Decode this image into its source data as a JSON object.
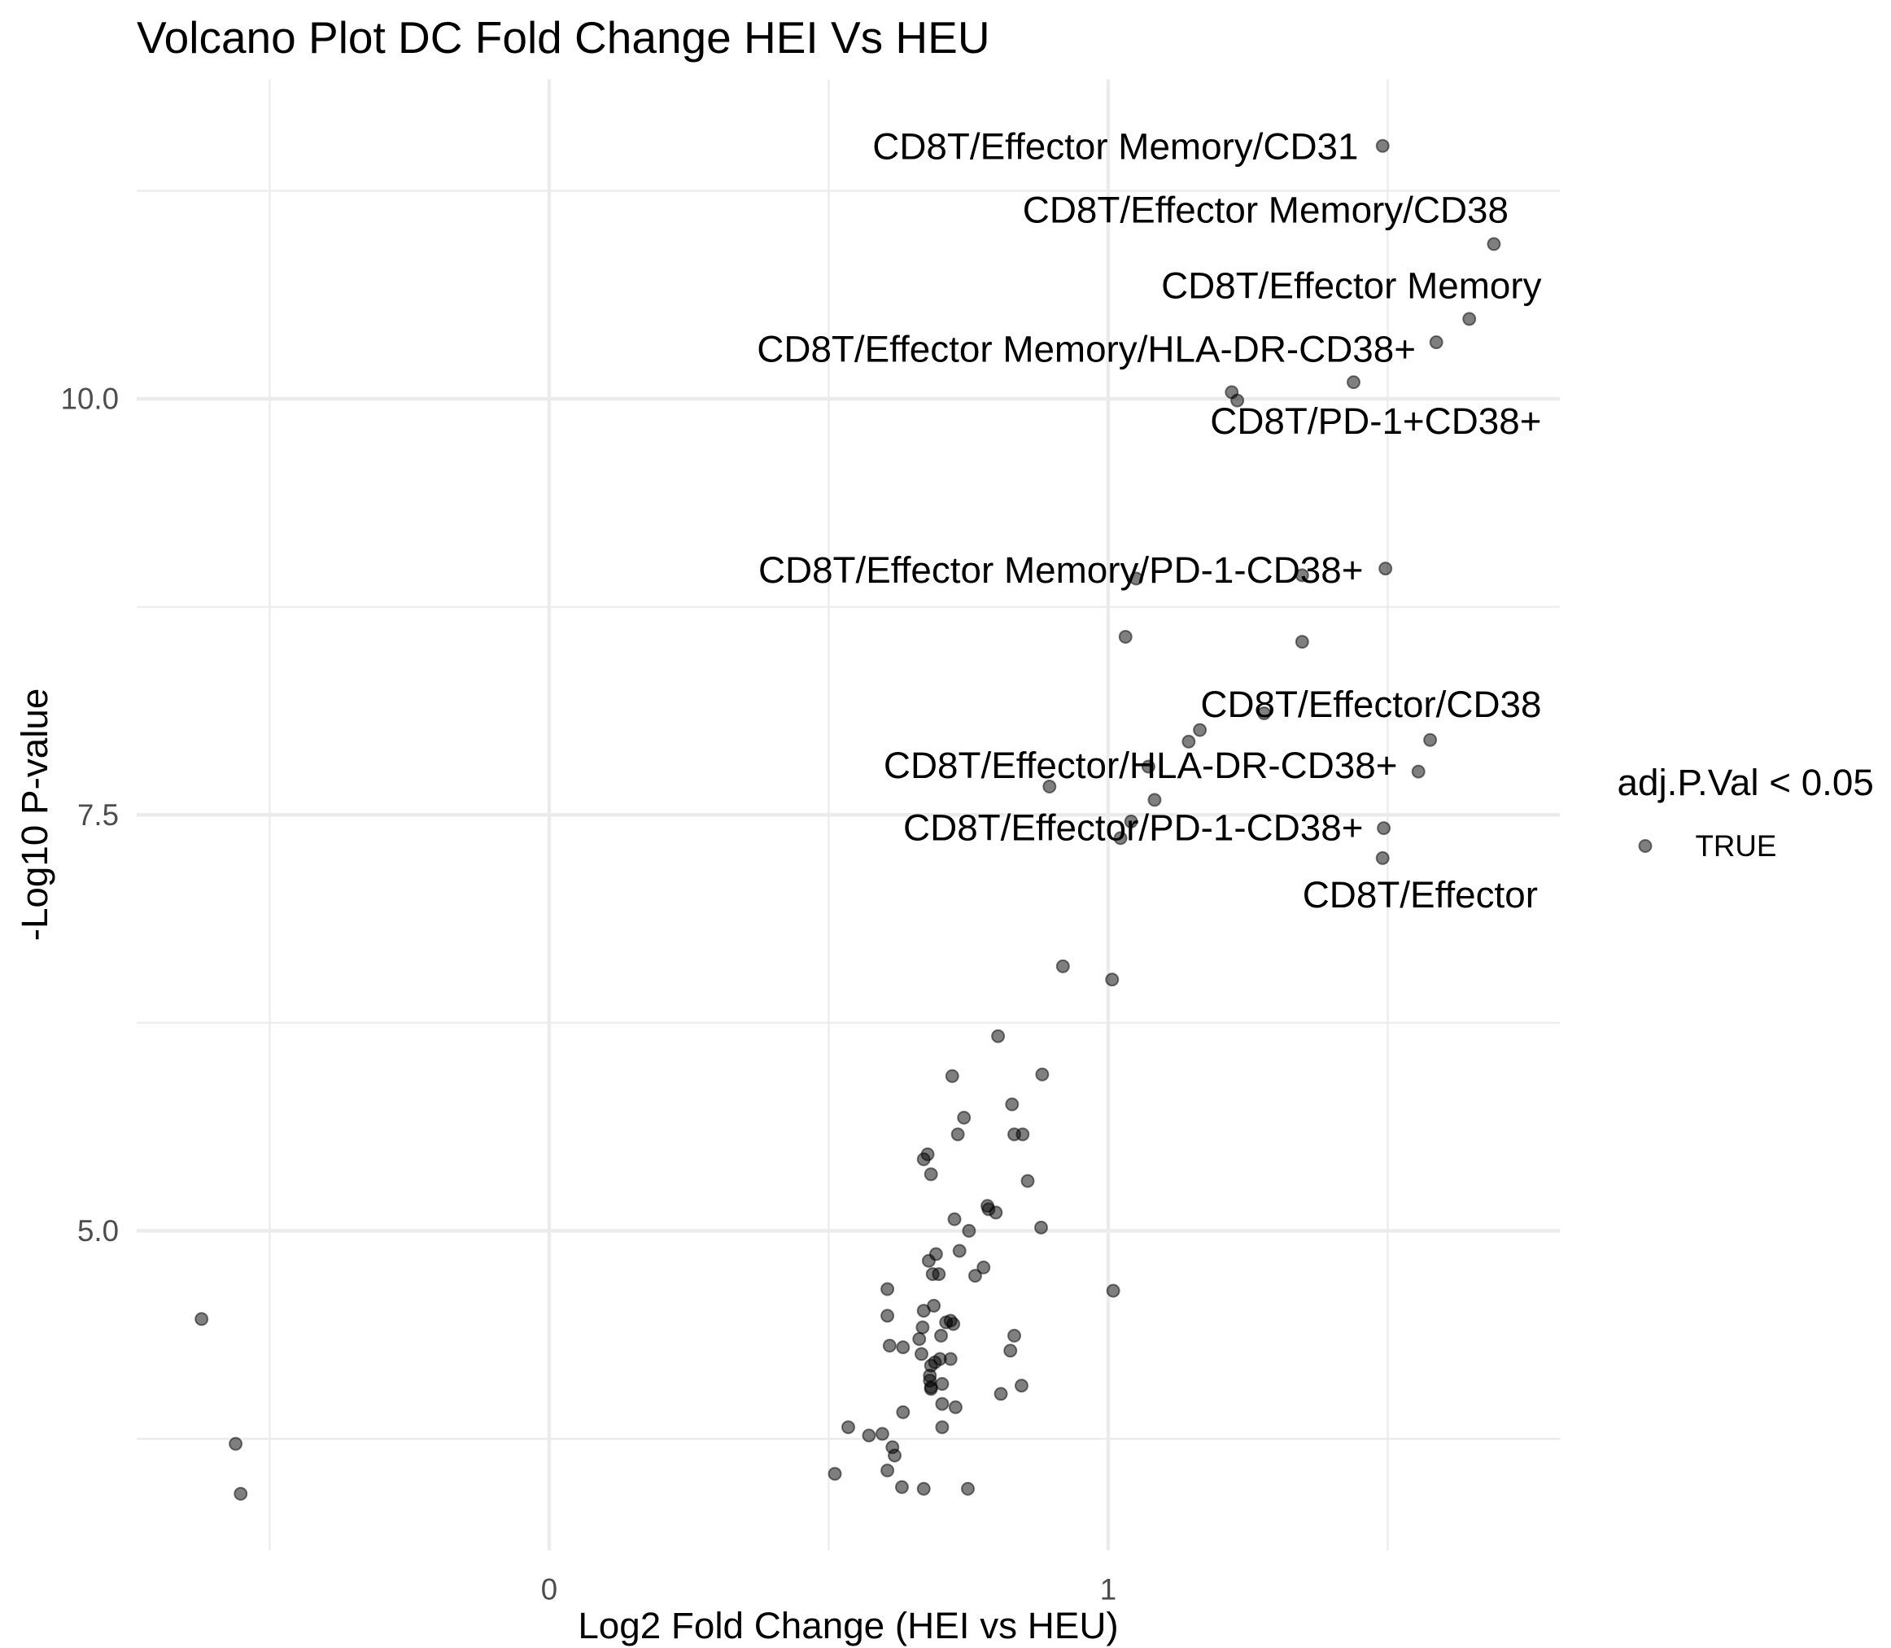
{
  "chart_data": {
    "type": "scatter",
    "title": "Volcano Plot DC Fold Change HEI Vs HEU",
    "xlabel": "Log2 Fold Change (HEI vs HEU)",
    "ylabel": "-Log10 P-value",
    "xlim": [
      -0.738,
      1.808
    ],
    "ylim": [
      3.08,
      11.92
    ],
    "x_ticks": [
      0,
      1
    ],
    "x_tick_labels": [
      "0",
      "1"
    ],
    "y_ticks": [
      5,
      7.5,
      10
    ],
    "y_tick_labels": [
      "5.0",
      "7.5",
      "10.0"
    ],
    "grid": true,
    "legend": {
      "title": "adj.P.Val < 0.05",
      "position": "right"
    },
    "series": [
      {
        "name": "TRUE",
        "color": "#000000",
        "x": [
          1.491,
          1.69,
          1.646,
          1.587,
          1.439,
          1.221,
          1.231,
          1.496,
          1.347,
          1.05,
          1.031,
          1.347,
          1.279,
          1.164,
          1.144,
          1.576,
          1.555,
          1.072,
          0.895,
          1.083,
          1.041,
          1.022,
          1.493,
          1.491,
          0.919,
          1.007,
          0.803,
          0.882,
          0.721,
          0.828,
          0.742,
          0.731,
          0.832,
          0.847,
          0.677,
          0.67,
          0.683,
          0.856,
          0.784,
          0.786,
          0.799,
          0.725,
          0.88,
          0.751,
          0.692,
          0.734,
          0.679,
          0.697,
          0.686,
          0.777,
          0.762,
          0.605,
          1.009,
          0.688,
          0.67,
          0.605,
          -0.622,
          0.718,
          0.71,
          0.723,
          0.668,
          0.701,
          0.832,
          0.662,
          0.609,
          0.633,
          0.825,
          0.666,
          0.718,
          0.699,
          0.69,
          0.683,
          0.681,
          0.681,
          0.703,
          0.683,
          0.845,
          0.683,
          0.808,
          0.703,
          0.727,
          0.633,
          0.703,
          0.535,
          0.572,
          0.596,
          -0.561,
          0.614,
          0.618,
          0.605,
          0.511,
          0.631,
          0.67,
          0.749,
          -0.552
        ],
        "y": [
          11.52,
          10.93,
          10.48,
          10.34,
          10.1,
          10.04,
          9.99,
          8.98,
          8.94,
          8.92,
          8.57,
          8.54,
          8.11,
          8.01,
          7.94,
          7.95,
          7.76,
          7.79,
          7.67,
          7.59,
          7.46,
          7.36,
          7.42,
          7.24,
          6.59,
          6.51,
          6.17,
          5.94,
          5.93,
          5.76,
          5.68,
          5.58,
          5.58,
          5.58,
          5.46,
          5.43,
          5.34,
          5.3,
          5.15,
          5.13,
          5.11,
          5.07,
          5.02,
          5.0,
          4.86,
          4.88,
          4.82,
          4.74,
          4.74,
          4.78,
          4.73,
          4.65,
          4.64,
          4.55,
          4.52,
          4.49,
          4.47,
          4.46,
          4.45,
          4.44,
          4.42,
          4.37,
          4.37,
          4.35,
          4.31,
          4.3,
          4.28,
          4.26,
          4.23,
          4.23,
          4.21,
          4.19,
          4.13,
          4.1,
          4.08,
          4.06,
          4.07,
          4.05,
          4.02,
          3.96,
          3.94,
          3.91,
          3.82,
          3.82,
          3.77,
          3.78,
          3.72,
          3.7,
          3.65,
          3.56,
          3.54,
          3.46,
          3.45,
          3.45,
          3.42
        ]
      }
    ],
    "annotations": [
      "CD8T/Effector Memory/CD31",
      "CD8T/Effector Memory/CD38",
      "CD8T/Effector Memory",
      "CD8T/Effector Memory/HLA-DR-CD38+",
      "CD8T/PD-1+CD38+",
      "CD8T/Effector Memory/PD-1-CD38+",
      "CD8T/Effector/CD38",
      "CD8T/Effector/HLA-DR-CD38+",
      "CD8T/Effector/PD-1-CD38+",
      "CD8T/Effector"
    ]
  }
}
